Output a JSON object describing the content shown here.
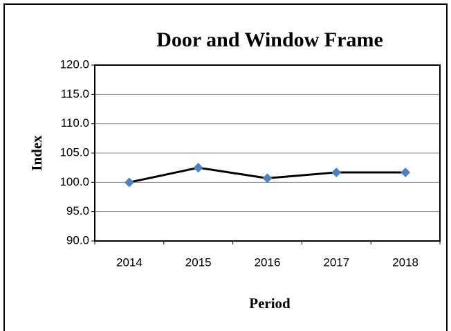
{
  "chart_data": {
    "type": "line",
    "title": "Door and Window Frame",
    "x_label": "Period",
    "y_label": "Index",
    "categories": [
      "2014",
      "2015",
      "2016",
      "2017",
      "2018"
    ],
    "values": [
      100.0,
      102.5,
      100.7,
      101.7,
      101.7
    ],
    "color": "#000000",
    "marker_color": "#4f81bd",
    "ylim": [
      90,
      120
    ],
    "yticks": [
      {
        "value": 90,
        "label": "90.0"
      },
      {
        "value": 95,
        "label": "95.0"
      },
      {
        "value": 100,
        "label": "100.0"
      },
      {
        "value": 105,
        "label": "105.0"
      },
      {
        "value": 110,
        "label": "110.0"
      },
      {
        "value": 115,
        "label": "115.0"
      },
      {
        "value": 120,
        "label": "120.0"
      }
    ],
    "grid": true
  }
}
